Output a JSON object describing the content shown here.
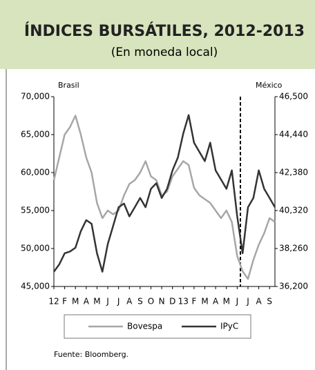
{
  "chart_data": {
    "type": "line",
    "title": "ÍNDICES BURSÁTILES, 2012-2013",
    "subtitle": "(En moneda local)",
    "y_label": "Brasil",
    "y2_label": "México",
    "source": "Fuente: Bloomberg.",
    "categories": [
      "12",
      null,
      "F",
      null,
      "M",
      null,
      "A",
      null,
      "M",
      null,
      "J",
      null,
      "J",
      null,
      "A",
      null,
      "S",
      null,
      "O",
      null,
      "N",
      null,
      "D",
      null,
      "13",
      null,
      "F",
      null,
      "M",
      null,
      "A",
      null,
      "M",
      null,
      "J",
      null,
      "J",
      null,
      "A",
      null,
      "S",
      null
    ],
    "series": [
      {
        "name": "Bovespa",
        "color": "#a6a6a6",
        "values": [
          59000,
          62000,
          65000,
          66000,
          67500,
          65000,
          62000,
          60000,
          56000,
          54000,
          55000,
          54500,
          55000,
          57000,
          58500,
          59000,
          60000,
          61500,
          59500,
          59000,
          57000,
          57500,
          59500,
          60500,
          61500,
          61000,
          58000,
          57000,
          56500,
          56000,
          55000,
          54000,
          55000,
          53500,
          49000,
          47000,
          46000,
          48500,
          50500,
          52000,
          54000,
          53500
        ]
      },
      {
        "name": "IPyC",
        "color": "#333333",
        "axis": "y2",
        "values": [
          37000,
          37400,
          38000,
          38100,
          38300,
          39200,
          39800,
          39600,
          38000,
          37000,
          38500,
          39500,
          40500,
          40700,
          40000,
          40500,
          41000,
          40500,
          41500,
          41800,
          41000,
          41500,
          42500,
          43200,
          44500,
          45500,
          44000,
          43500,
          43000,
          44000,
          42500,
          42000,
          41500,
          42500,
          40000,
          38000,
          40500,
          41000,
          42500,
          41500,
          41000,
          40500
        ]
      }
    ],
    "ylim": [
      45000,
      70000
    ],
    "yticks": [
      {
        "value": 45000,
        "label": "45,000"
      },
      {
        "value": 50000,
        "label": "50,000"
      },
      {
        "value": 55000,
        "label": "55,000"
      },
      {
        "value": 60000,
        "label": "60,000"
      },
      {
        "value": 65000,
        "label": "65,000"
      },
      {
        "value": 70000,
        "label": "70,000"
      }
    ],
    "y2lim": [
      36200,
      46500
    ],
    "y2ticks": [
      {
        "value": 36200,
        "label": "36,200"
      },
      {
        "value": 38260,
        "label": "38,260"
      },
      {
        "value": 40320,
        "label": "40,320"
      },
      {
        "value": 42380,
        "label": "42,380"
      },
      {
        "value": 44440,
        "label": "44,440"
      },
      {
        "value": 46500,
        "label": "46,500"
      }
    ],
    "grid": false,
    "legend": "bottom"
  }
}
